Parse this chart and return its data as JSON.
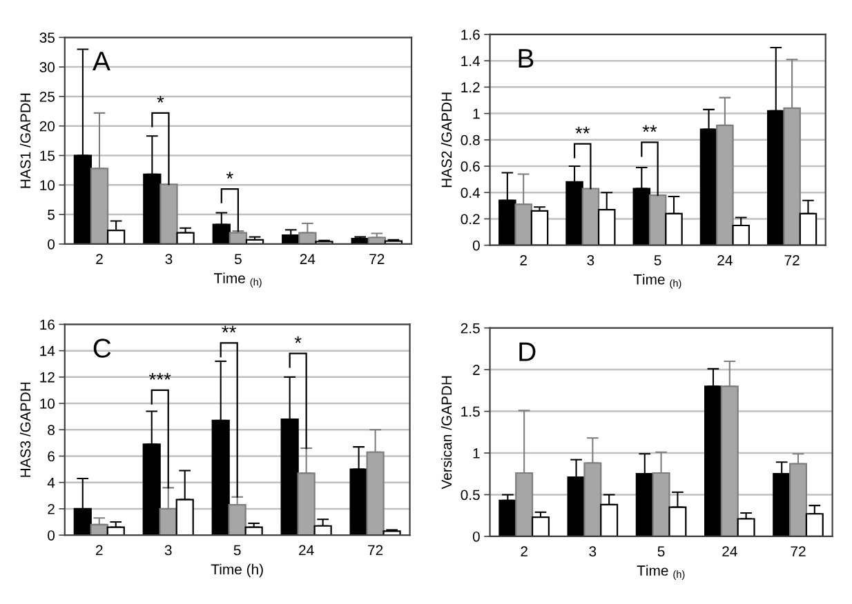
{
  "chart_data": [
    {
      "type": "bar",
      "categories": [
        "2",
        "3",
        "5",
        "24",
        "72"
      ],
      "ylabel": "HAS1 /GAPDH",
      "xlabel": "Time $_{(h)}$",
      "ylim": [
        0,
        35
      ],
      "yticks": [
        0,
        5,
        10,
        15,
        20,
        25,
        30,
        35
      ],
      "grid": "y",
      "series": [
        {
          "color": "#000000",
          "values": [
            15,
            11.8,
            3.3,
            1.5,
            0.9
          ],
          "errors": [
            [
              15,
              33
            ],
            [
              11.8,
              18.3
            ],
            [
              3.3,
              5.3
            ],
            [
              1.5,
              2.4
            ],
            [
              0.9,
              1.2
            ]
          ]
        },
        {
          "color": "#a6a6a6",
          "values": [
            12.8,
            10.1,
            1.9,
            1.9,
            1.1
          ],
          "errors": [
            [
              12.8,
              22.2
            ],
            null,
            [
              1.9,
              2.2
            ],
            [
              1.9,
              3.5
            ],
            [
              1.1,
              1.8
            ]
          ]
        },
        {
          "color": "#ffffff",
          "values": [
            2.3,
            1.9,
            0.7,
            0.4,
            0.5
          ],
          "errors": [
            [
              2.3,
              3.9
            ],
            [
              1.9,
              2.7
            ],
            [
              0.7,
              1.2
            ],
            [
              0.4,
              0.6
            ],
            [
              0.5,
              0.7
            ]
          ]
        }
      ],
      "annotations": [
        "A",
        {
          "text": "*",
          "x": "3",
          "y": 10.1
        },
        {
          "text": "*",
          "x": "5",
          "y": 2.2
        }
      ]
    },
    {
      "type": "bar",
      "categories": [
        "2",
        "3",
        "5",
        "24",
        "72"
      ],
      "ylabel": "HAS2 /GAPDH",
      "xlabel": "Time $_{(h)}$",
      "ylim": [
        0,
        1.6
      ],
      "yticks": [
        0,
        0.2,
        0.4,
        0.6,
        0.8,
        1,
        1.2,
        1.4,
        1.6
      ],
      "grid": "y",
      "series": [
        {
          "color": "#000000",
          "values": [
            0.34,
            0.48,
            0.43,
            0.88,
            1.02
          ],
          "errors": [
            [
              0.34,
              0.55
            ],
            [
              0.48,
              0.6
            ],
            [
              0.43,
              0.59
            ],
            [
              0.88,
              1.03
            ],
            [
              1.02,
              1.5
            ]
          ]
        },
        {
          "color": "#a6a6a6",
          "values": [
            0.31,
            0.43,
            0.38,
            0.91,
            1.04
          ],
          "errors": [
            [
              0.31,
              0.54
            ],
            null,
            null,
            [
              0.91,
              1.12
            ],
            [
              1.04,
              1.41
            ]
          ]
        },
        {
          "color": "#ffffff",
          "values": [
            0.26,
            0.27,
            0.24,
            0.15,
            0.24
          ],
          "errors": [
            [
              0.26,
              0.29
            ],
            [
              0.27,
              0.4
            ],
            [
              0.24,
              0.37
            ],
            [
              0.15,
              0.21
            ],
            [
              0.24,
              0.34
            ]
          ]
        }
      ],
      "annotations": [
        "B",
        {
          "text": "**",
          "x": "3",
          "y": 0.43
        },
        {
          "text": "**",
          "x": "5",
          "y": 0.38
        }
      ]
    },
    {
      "type": "bar",
      "categories": [
        "2",
        "3",
        "5",
        "24",
        "72"
      ],
      "ylabel": "HAS3 /GAPDH",
      "xlabel": "Time (h)",
      "ylim": [
        0,
        16
      ],
      "yticks": [
        0,
        2,
        4,
        6,
        8,
        10,
        12,
        14,
        16
      ],
      "grid": "y",
      "series": [
        {
          "color": "#000000",
          "values": [
            2.0,
            6.9,
            8.7,
            8.8,
            5.0
          ],
          "errors": [
            [
              2.0,
              4.3
            ],
            [
              6.9,
              9.4
            ],
            [
              8.7,
              13.2
            ],
            [
              8.8,
              12.0
            ],
            [
              5.0,
              6.7
            ]
          ]
        },
        {
          "color": "#a6a6a6",
          "values": [
            0.8,
            2.0,
            2.3,
            4.7,
            6.3
          ],
          "errors": [
            [
              0.8,
              1.3
            ],
            [
              2.0,
              3.6
            ],
            [
              2.3,
              2.9
            ],
            [
              4.7,
              6.6
            ],
            [
              6.3,
              8.0
            ]
          ]
        },
        {
          "color": "#ffffff",
          "values": [
            0.6,
            2.7,
            0.6,
            0.7,
            0.3
          ],
          "errors": [
            [
              0.6,
              1.0
            ],
            [
              2.7,
              4.9
            ],
            [
              0.6,
              0.9
            ],
            [
              0.7,
              1.2
            ],
            [
              0.3,
              0.4
            ]
          ]
        }
      ],
      "annotations": [
        "C",
        {
          "text": "***",
          "x": "3",
          "y": 3.6
        },
        {
          "text": "**",
          "x": "5",
          "y": 2.9
        },
        {
          "text": "*",
          "x": "24",
          "y": 6.6
        }
      ]
    },
    {
      "type": "bar",
      "categories": [
        "2",
        "3",
        "5",
        "24",
        "72"
      ],
      "ylabel": "Versican /GAPDH",
      "xlabel": "Time $_{(h)}$",
      "ylim": [
        0,
        2.5
      ],
      "yticks": [
        0,
        0.5,
        1,
        1.5,
        2,
        2.5
      ],
      "grid": "y",
      "series": [
        {
          "color": "#000000",
          "values": [
            0.43,
            0.71,
            0.75,
            1.8,
            0.75
          ],
          "errors": [
            [
              0.43,
              0.5
            ],
            [
              0.71,
              0.92
            ],
            [
              0.75,
              0.99
            ],
            [
              1.8,
              2.01
            ],
            [
              0.75,
              0.89
            ]
          ]
        },
        {
          "color": "#a6a6a6",
          "values": [
            0.76,
            0.88,
            0.76,
            1.8,
            0.87
          ],
          "errors": [
            [
              0.76,
              1.51
            ],
            [
              0.88,
              1.18
            ],
            [
              0.76,
              1.01
            ],
            [
              1.8,
              2.1
            ],
            [
              0.87,
              0.99
            ]
          ]
        },
        {
          "color": "#ffffff",
          "values": [
            0.23,
            0.38,
            0.35,
            0.21,
            0.27
          ],
          "errors": [
            [
              0.23,
              0.29
            ],
            [
              0.38,
              0.5
            ],
            [
              0.35,
              0.53
            ],
            [
              0.21,
              0.28
            ],
            [
              0.27,
              0.37
            ]
          ]
        }
      ],
      "annotations": [
        "D"
      ]
    }
  ]
}
